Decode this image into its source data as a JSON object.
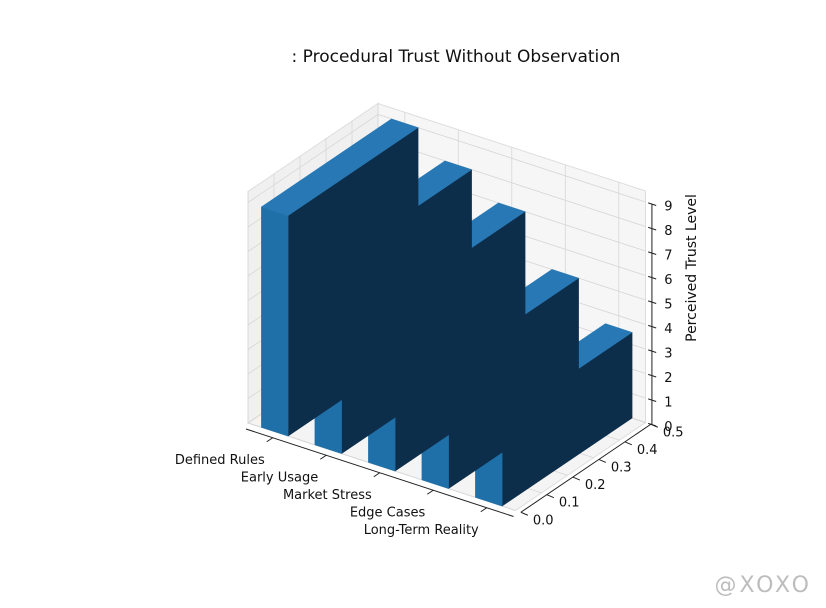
{
  "chart_data": {
    "type": "bar3d",
    "title": ": Procedural Trust Without Observation",
    "categories": [
      "Defined Rules",
      "Early Usage",
      "Market Stress",
      "Edge Cases",
      "Long-Term Reality"
    ],
    "values": [
      9,
      8,
      7,
      5,
      3.5
    ],
    "zlabel": "Perceived Trust Level",
    "zlim": [
      0,
      9
    ],
    "zticks": [
      "0",
      "1",
      "2",
      "3",
      "4",
      "5",
      "6",
      "7",
      "8",
      "9"
    ],
    "ylim": [
      0,
      0.5
    ],
    "yticks": [
      "0.0",
      "0.1",
      "0.2",
      "0.3",
      "0.4",
      "0.5"
    ],
    "grid": true,
    "colors": {
      "front": "#1f6fa8",
      "side": "#0d2e4b",
      "top": "#2778b4"
    }
  },
  "watermark": "@XOXO"
}
